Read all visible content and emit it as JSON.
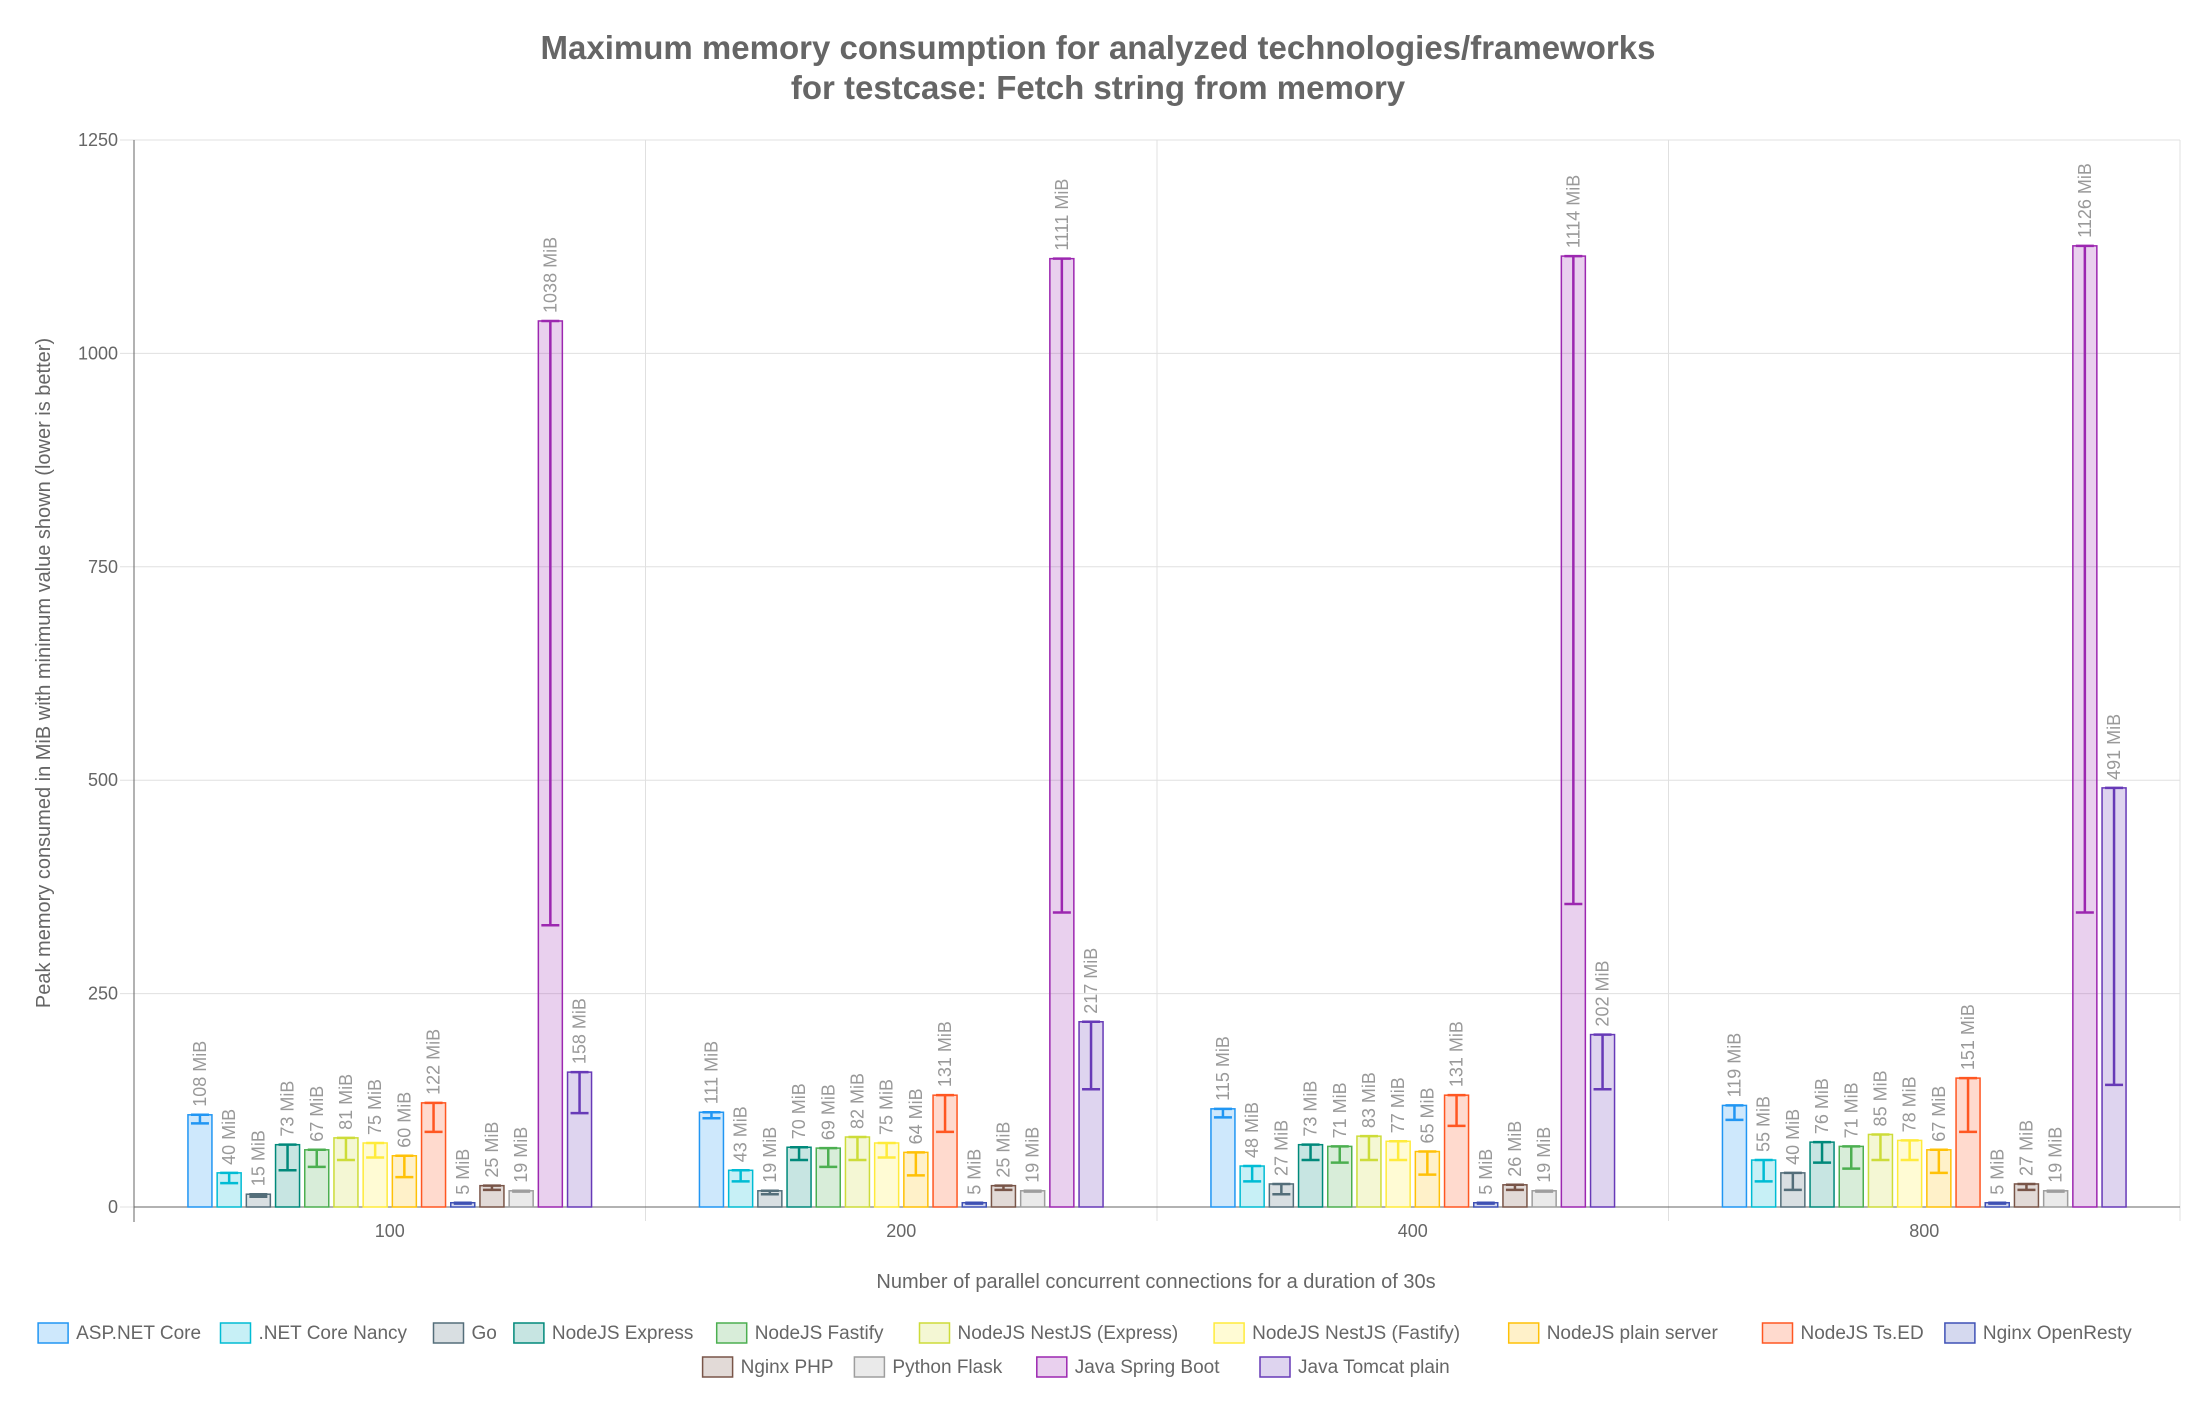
{
  "chart_data": {
    "type": "bar",
    "title": [
      "Maximum memory consumption for analyzed technologies/frameworks",
      "for testcase: Fetch string from memory"
    ],
    "xlabel": "Number of parallel concurrent connections for a duration of 30s",
    "ylabel": "Peak memory consumed in MiB with minimum value shown (lower is better)",
    "ylim": [
      0,
      1250
    ],
    "yticks": [
      "0",
      "250",
      "500",
      "750",
      "1000",
      "1250"
    ],
    "categories": [
      "100",
      "200",
      "400",
      "800"
    ],
    "unit": "MiB",
    "grid": true,
    "legend_position": "bottom",
    "series": [
      {
        "name": "ASP.NET Core",
        "color": "#2196f3",
        "values": [
          108,
          111,
          115,
          119
        ],
        "min": [
          98,
          104,
          105,
          102
        ]
      },
      {
        "name": ".NET Core Nancy",
        "color": "#00bcd4",
        "values": [
          40,
          43,
          48,
          55
        ],
        "min": [
          28,
          30,
          30,
          30
        ]
      },
      {
        "name": "Go",
        "color": "#546e7a",
        "values": [
          15,
          19,
          27,
          40
        ],
        "min": [
          12,
          15,
          15,
          20
        ]
      },
      {
        "name": "NodeJS Express",
        "color": "#00897b",
        "values": [
          73,
          70,
          73,
          76
        ],
        "min": [
          43,
          55,
          55,
          52
        ]
      },
      {
        "name": "NodeJS Fastify",
        "color": "#4caf50",
        "values": [
          67,
          69,
          71,
          71
        ],
        "min": [
          47,
          47,
          52,
          45
        ]
      },
      {
        "name": "NodeJS NestJS (Express)",
        "color": "#cddc39",
        "values": [
          81,
          82,
          83,
          85
        ],
        "min": [
          55,
          55,
          55,
          55
        ]
      },
      {
        "name": "NodeJS NestJS (Fastify)",
        "color": "#ffeb3b",
        "values": [
          75,
          75,
          77,
          78
        ],
        "min": [
          58,
          58,
          55,
          55
        ]
      },
      {
        "name": "NodeJS plain server",
        "color": "#ffc107",
        "values": [
          60,
          64,
          65,
          67
        ],
        "min": [
          35,
          37,
          38,
          40
        ]
      },
      {
        "name": "NodeJS Ts.ED",
        "color": "#ff5722",
        "values": [
          122,
          131,
          131,
          151
        ],
        "min": [
          88,
          88,
          95,
          88
        ]
      },
      {
        "name": "Nginx OpenResty",
        "color": "#3f51b5",
        "values": [
          5,
          5,
          5,
          5
        ],
        "min": [
          4,
          4,
          4,
          4
        ]
      },
      {
        "name": "Nginx PHP",
        "color": "#795548",
        "values": [
          25,
          25,
          26,
          27
        ],
        "min": [
          20,
          20,
          20,
          20
        ]
      },
      {
        "name": "Python Flask",
        "color": "#9e9e9e",
        "values": [
          19,
          19,
          19,
          19
        ],
        "min": [
          18,
          18,
          18,
          18
        ]
      },
      {
        "name": "Java Spring Boot",
        "color": "#9c27b0",
        "values": [
          1038,
          1111,
          1114,
          1126
        ],
        "min": [
          330,
          345,
          355,
          345
        ]
      },
      {
        "name": "Java Tomcat plain",
        "color": "#673ab7",
        "values": [
          158,
          217,
          202,
          491
        ],
        "min": [
          110,
          138,
          138,
          143
        ]
      }
    ]
  }
}
